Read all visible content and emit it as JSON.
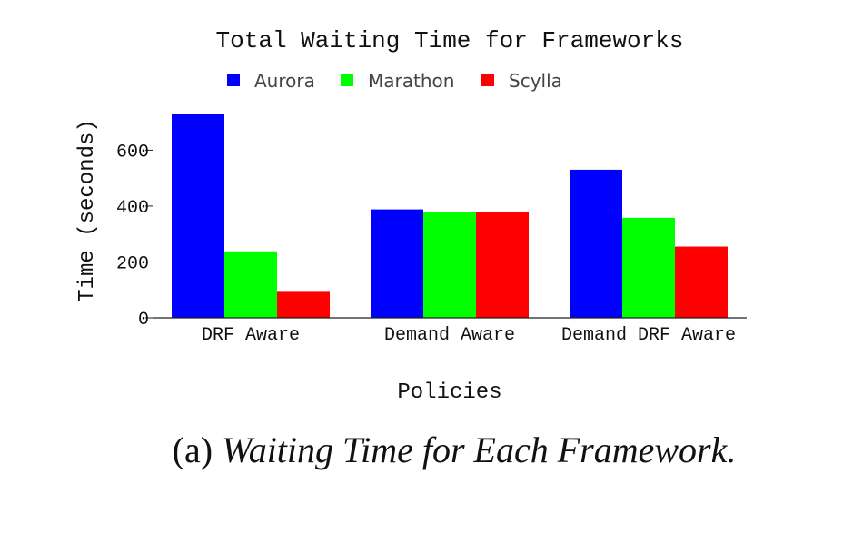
{
  "chart_data": {
    "type": "bar",
    "title": "Total Waiting Time for Frameworks",
    "xlabel": "Policies",
    "ylabel": "Time (seconds)",
    "categories": [
      "DRF Aware",
      "Demand Aware",
      "Demand DRF Aware"
    ],
    "series": [
      {
        "name": "Aurora",
        "color": "#0000ff",
        "values": [
          730,
          388,
          530
        ]
      },
      {
        "name": "Marathon",
        "color": "#00ff00",
        "values": [
          238,
          378,
          358
        ]
      },
      {
        "name": "Scylla",
        "color": "#ff0000",
        "values": [
          93,
          378,
          255
        ]
      }
    ],
    "ylim": [
      0,
      780
    ],
    "yticks": [
      0,
      200,
      400,
      600
    ],
    "grid": false,
    "legend_position": "top"
  },
  "caption": {
    "label": "(a)",
    "text": "Waiting Time for Each Framework."
  }
}
